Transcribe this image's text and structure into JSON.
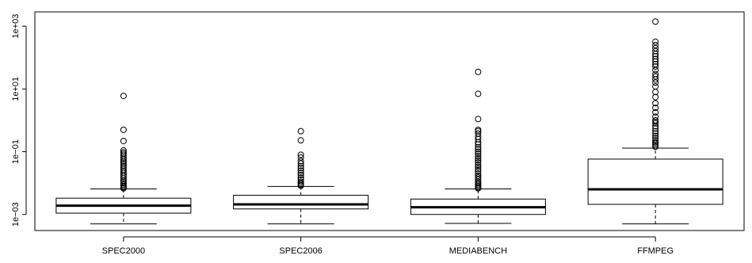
{
  "chart_data": {
    "type": "boxplot",
    "title": "",
    "xlabel": "",
    "ylabel": "",
    "y_scale": "log10",
    "ylim": [
      0.00055,
      1600
    ],
    "y_ticks": [
      {
        "value": 0.001,
        "label": "1e−03"
      },
      {
        "value": 0.1,
        "label": "1e−01"
      },
      {
        "value": 10,
        "label": "1e+01"
      },
      {
        "value": 1000,
        "label": "1e+03"
      }
    ],
    "categories": [
      "SPEC2000",
      "SPEC2006",
      "MEDIABENCH",
      "FFMPEG"
    ],
    "boxes": [
      {
        "name": "SPEC2000",
        "whisker_low": 0.0005,
        "q1": 0.0011,
        "median": 0.0019,
        "q3": 0.0033,
        "whisker_high": 0.0065,
        "outliers": [
          6,
          0.5,
          0.22,
          0.11,
          0.095,
          0.085,
          0.075,
          0.065,
          0.057,
          0.05,
          0.045,
          0.04,
          0.035,
          0.031,
          0.027,
          0.024,
          0.021,
          0.018,
          0.016,
          0.014,
          0.012,
          0.011,
          0.0098,
          0.0088,
          0.008,
          0.0073,
          0.0068
        ]
      },
      {
        "name": "SPEC2006",
        "whisker_low": 0.0005,
        "q1": 0.0015,
        "median": 0.0021,
        "q3": 0.0041,
        "whisker_high": 0.0078,
        "outliers": [
          0.45,
          0.23,
          0.08,
          0.065,
          0.05,
          0.042,
          0.035,
          0.03,
          0.025,
          0.021,
          0.018,
          0.015,
          0.013,
          0.011,
          0.0098,
          0.0088,
          0.0082
        ]
      },
      {
        "name": "MEDIABENCH",
        "whisker_low": 0.00052,
        "q1": 0.001,
        "median": 0.0017,
        "q3": 0.0031,
        "whisker_high": 0.0065,
        "outliers": [
          35,
          7,
          1.1,
          0.5,
          0.45,
          0.38,
          0.3,
          0.25,
          0.2,
          0.17,
          0.14,
          0.12,
          0.1,
          0.085,
          0.072,
          0.062,
          0.053,
          0.045,
          0.038,
          0.033,
          0.028,
          0.024,
          0.02,
          0.017,
          0.015,
          0.013,
          0.011,
          0.0098,
          0.0088,
          0.008,
          0.0073,
          0.0068
        ]
      },
      {
        "name": "FFMPEG",
        "whisker_low": 0.0005,
        "q1": 0.0021,
        "median": 0.0063,
        "q3": 0.058,
        "whisker_high": 0.13,
        "outliers": [
          1400,
          320,
          250,
          200,
          160,
          130,
          110,
          90,
          75,
          62,
          52,
          40,
          30,
          25,
          20,
          16,
          12,
          8,
          5.5,
          3.5,
          2.5,
          1.8,
          1.3,
          1.0,
          0.9,
          0.8,
          0.65,
          0.55,
          0.45,
          0.38,
          0.32,
          0.27,
          0.23,
          0.2,
          0.18,
          0.16,
          0.145
        ]
      }
    ],
    "grid": false,
    "legend": false,
    "colors": {
      "stroke": "#000000",
      "fill": "#ffffff",
      "background": "#ffffff"
    }
  }
}
